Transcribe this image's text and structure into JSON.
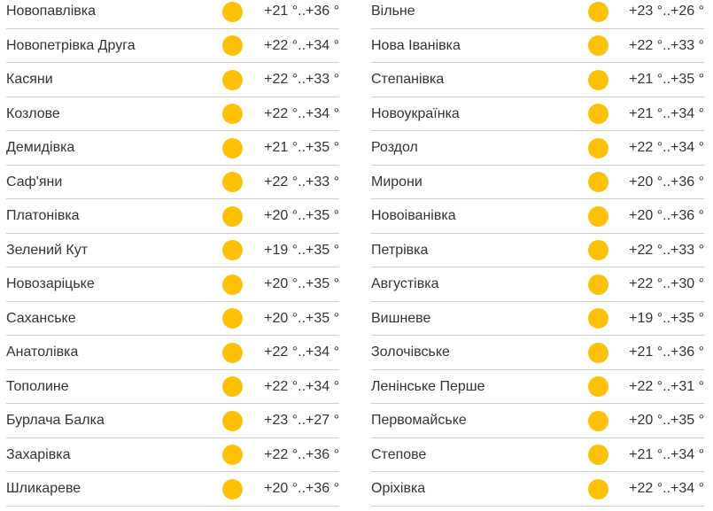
{
  "sun_color": "#FFC107",
  "icon": "sun-icon",
  "left": [
    {
      "name": "Новопавлівка",
      "temp": "+21 °..+36 °"
    },
    {
      "name": "Новопетрівка Друга",
      "temp": "+22 °..+34 °"
    },
    {
      "name": "Касяни",
      "temp": "+22 °..+33 °"
    },
    {
      "name": "Козлове",
      "temp": "+22 °..+34 °"
    },
    {
      "name": "Демидівка",
      "temp": "+21 °..+35 °"
    },
    {
      "name": "Саф'яни",
      "temp": "+22 °..+33 °"
    },
    {
      "name": "Платонівка",
      "temp": "+20 °..+35 °"
    },
    {
      "name": "Зелений Кут",
      "temp": "+19 °..+35 °"
    },
    {
      "name": "Новозаріцьке",
      "temp": "+20 °..+35 °"
    },
    {
      "name": "Саханське",
      "temp": "+20 °..+35 °"
    },
    {
      "name": "Анатолівка",
      "temp": "+22 °..+34 °"
    },
    {
      "name": "Тополине",
      "temp": "+22 °..+34 °"
    },
    {
      "name": "Бурлача Балка",
      "temp": "+23 °..+27 °"
    },
    {
      "name": "Захарівка",
      "temp": "+22 °..+36 °"
    },
    {
      "name": "Шликареве",
      "temp": "+20 °..+36 °"
    }
  ],
  "right": [
    {
      "name": "Вільне",
      "temp": "+23 °..+26 °"
    },
    {
      "name": "Нова Іванівка",
      "temp": "+22 °..+33 °"
    },
    {
      "name": "Степанівка",
      "temp": "+21 °..+35 °"
    },
    {
      "name": "Новоукраїнка",
      "temp": "+21 °..+34 °"
    },
    {
      "name": "Роздол",
      "temp": "+22 °..+34 °"
    },
    {
      "name": "Мирони",
      "temp": "+20 °..+36 °"
    },
    {
      "name": "Новоіванівка",
      "temp": "+20 °..+36 °"
    },
    {
      "name": "Петрівка",
      "temp": "+22 °..+33 °"
    },
    {
      "name": "Августівка",
      "temp": "+22 °..+30 °"
    },
    {
      "name": "Вишневе",
      "temp": "+19 °..+35 °"
    },
    {
      "name": "Золочівське",
      "temp": "+21 °..+36 °"
    },
    {
      "name": "Ленінське Перше",
      "temp": "+22 °..+31 °"
    },
    {
      "name": "Первомайське",
      "temp": "+20 °..+35 °"
    },
    {
      "name": "Степове",
      "temp": "+21 °..+34 °"
    },
    {
      "name": "Оріхівка",
      "temp": "+22 °..+34 °"
    }
  ]
}
